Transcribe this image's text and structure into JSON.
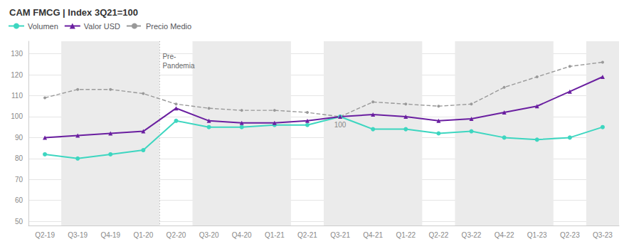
{
  "chart_data": {
    "type": "line",
    "title": "CAM FMCG | Index 3Q21=100",
    "categories": [
      "Q2-19",
      "Q3-19",
      "Q4-19",
      "Q1-20",
      "Q2-20",
      "Q3-20",
      "Q4-20",
      "Q1-21",
      "Q2-21",
      "Q3-21",
      "Q4-21",
      "Q1-22",
      "Q2-22",
      "Q3-22",
      "Q4-22",
      "Q1-23",
      "Q2-23",
      "Q3-23"
    ],
    "series": [
      {
        "name": "Volumen",
        "color": "#3dd6c0",
        "marker": "circle",
        "line_style": "solid",
        "values": [
          82,
          80,
          82,
          84,
          98,
          95,
          95,
          96,
          96,
          100,
          94,
          94,
          92,
          93,
          90,
          89,
          90,
          95
        ]
      },
      {
        "name": "Valor USD",
        "color": "#6a1fa0",
        "marker": "triangle",
        "line_style": "solid",
        "values": [
          90,
          91,
          92,
          93,
          104,
          98,
          97,
          97,
          98,
          100,
          101,
          100,
          98,
          99,
          102,
          105,
          112,
          119
        ]
      },
      {
        "name": "Precio Medio",
        "color": "#999999",
        "marker": "circle",
        "line_style": "dashed",
        "values": [
          109,
          113,
          113,
          111,
          106,
          104,
          103,
          103,
          102,
          100,
          107,
          106,
          105,
          106,
          114,
          119,
          124,
          126
        ]
      }
    ],
    "ylim": [
      48,
      136
    ],
    "yticks": [
      50,
      60,
      70,
      80,
      90,
      100,
      110,
      120,
      130
    ],
    "grid": true,
    "legend": "upper left",
    "annotations": [
      {
        "text": "100",
        "x": "Q3-21",
        "y": 100
      },
      {
        "text": "Pre-\nPandemia",
        "x": "Q2-20",
        "y": 131,
        "line_style": "dotted"
      }
    ],
    "shaded_regions": {
      "color": "#ebebeb",
      "ranges": [
        [
          "Q3-19",
          "Q1-20"
        ],
        [
          "Q3-20",
          "Q1-21"
        ],
        [
          "Q3-21",
          "Q1-22"
        ],
        [
          "Q3-22",
          "Q1-23"
        ],
        [
          "Q3-23",
          "Q3-23"
        ]
      ]
    }
  }
}
